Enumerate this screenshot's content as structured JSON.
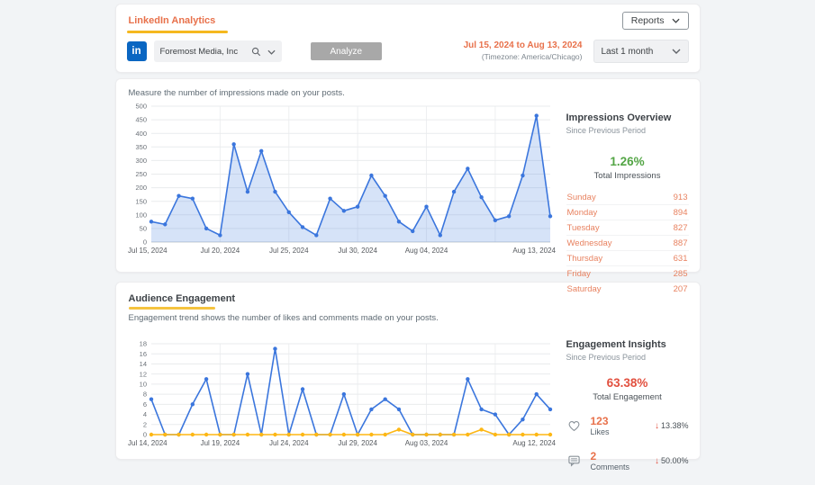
{
  "header": {
    "tab_label": "LinkedIn Analytics",
    "reports_button": "Reports",
    "linkedin_icon_text": "in",
    "company_name": "Foremost Media, Inc",
    "analyze_button": "Analyze",
    "date_range": "Jul 15, 2024 to Aug 13, 2024",
    "timezone": "(Timezone: America/Chicago)",
    "period_selected": "Last 1 month"
  },
  "impressions": {
    "description": "Measure the number of impressions made on your posts.",
    "overview": {
      "title": "Impressions Overview",
      "subtitle": "Since Previous Period",
      "change_pct": "1.26%",
      "change_color": "#53a545",
      "change_label": "Total Impressions",
      "days": [
        {
          "label": "Sunday",
          "value": "913"
        },
        {
          "label": "Monday",
          "value": "894"
        },
        {
          "label": "Tuesday",
          "value": "827"
        },
        {
          "label": "Wednesday",
          "value": "887"
        },
        {
          "label": "Thursday",
          "value": "631"
        },
        {
          "label": "Friday",
          "value": "285"
        },
        {
          "label": "Saturday",
          "value": "207"
        }
      ]
    }
  },
  "engagement": {
    "title": "Audience Engagement",
    "description": "Engagement trend shows the number of likes and comments made on your posts.",
    "insights": {
      "title": "Engagement Insights",
      "subtitle": "Since Previous Period",
      "change_pct": "63.38%",
      "change_color": "#e2503f",
      "change_label": "Total Engagement",
      "metrics": [
        {
          "icon": "heart-icon",
          "value": "123",
          "label": "Likes",
          "delta": "13.38%",
          "direction": "down"
        },
        {
          "icon": "comment-icon",
          "value": "2",
          "label": "Comments",
          "delta": "50.00%",
          "direction": "down"
        }
      ]
    }
  },
  "chart_data": [
    {
      "type": "area",
      "title": "Impressions per day",
      "x": [
        "Jul 15, 2024",
        "Jul 16, 2024",
        "Jul 17, 2024",
        "Jul 18, 2024",
        "Jul 19, 2024",
        "Jul 20, 2024",
        "Jul 21, 2024",
        "Jul 22, 2024",
        "Jul 23, 2024",
        "Jul 24, 2024",
        "Jul 25, 2024",
        "Jul 26, 2024",
        "Jul 27, 2024",
        "Jul 28, 2024",
        "Jul 29, 2024",
        "Jul 30, 2024",
        "Jul 31, 2024",
        "Aug 01, 2024",
        "Aug 02, 2024",
        "Aug 03, 2024",
        "Aug 04, 2024",
        "Aug 05, 2024",
        "Aug 06, 2024",
        "Aug 07, 2024",
        "Aug 08, 2024",
        "Aug 09, 2024",
        "Aug 10, 2024",
        "Aug 11, 2024",
        "Aug 12, 2024",
        "Aug 13, 2024"
      ],
      "series": [
        {
          "name": "Impressions",
          "color": "#3b76dd",
          "fill": "rgba(67,126,222,0.22)",
          "values": [
            75,
            65,
            170,
            160,
            50,
            25,
            360,
            185,
            335,
            185,
            110,
            55,
            25,
            160,
            115,
            130,
            245,
            170,
            75,
            40,
            130,
            25,
            185,
            270,
            165,
            80,
            95,
            245,
            465,
            95
          ]
        }
      ],
      "ylim": [
        0,
        500
      ],
      "ytick_step": 50,
      "x_tick_labels": [
        "Jul 15, 2024",
        "Jul 20, 2024",
        "Jul 25, 2024",
        "Jul 30, 2024",
        "Aug 04, 2024",
        "Aug 13, 2024"
      ],
      "x_tick_indices": [
        0,
        5,
        10,
        15,
        20,
        29
      ],
      "x_grid_indices": [
        5,
        10,
        15,
        20,
        25
      ],
      "grid": true,
      "legend": "none"
    },
    {
      "type": "line",
      "title": "Likes and comments per day",
      "x": [
        "Jul 14, 2024",
        "Jul 15, 2024",
        "Jul 16, 2024",
        "Jul 17, 2024",
        "Jul 18, 2024",
        "Jul 19, 2024",
        "Jul 20, 2024",
        "Jul 21, 2024",
        "Jul 22, 2024",
        "Jul 23, 2024",
        "Jul 24, 2024",
        "Jul 25, 2024",
        "Jul 26, 2024",
        "Jul 27, 2024",
        "Jul 28, 2024",
        "Jul 29, 2024",
        "Jul 30, 2024",
        "Jul 31, 2024",
        "Aug 01, 2024",
        "Aug 02, 2024",
        "Aug 03, 2024",
        "Aug 04, 2024",
        "Aug 05, 2024",
        "Aug 06, 2024",
        "Aug 07, 2024",
        "Aug 08, 2024",
        "Aug 09, 2024",
        "Aug 10, 2024",
        "Aug 11, 2024",
        "Aug 12, 2024"
      ],
      "series": [
        {
          "name": "Likes",
          "color": "#3b76dd",
          "values": [
            7,
            0,
            0,
            6,
            11,
            0,
            0,
            12,
            0,
            17,
            0,
            9,
            0,
            0,
            8,
            0,
            5,
            7,
            5,
            0,
            0,
            0,
            0,
            11,
            5,
            4,
            0,
            3,
            8,
            5
          ]
        },
        {
          "name": "Comments",
          "color": "#fdb714",
          "values": [
            0,
            0,
            0,
            0,
            0,
            0,
            0,
            0,
            0,
            0,
            0,
            0,
            0,
            0,
            0,
            0,
            0,
            0,
            1,
            0,
            0,
            0,
            0,
            0,
            1,
            0,
            0,
            0,
            0,
            0
          ]
        }
      ],
      "ylim": [
        0,
        18
      ],
      "ytick_step": 2,
      "x_tick_labels": [
        "Jul 14, 2024",
        "Jul 19, 2024",
        "Jul 24, 2024",
        "Jul 29, 2024",
        "Aug 03, 2024",
        "Aug 12, 2024"
      ],
      "x_tick_indices": [
        0,
        5,
        10,
        15,
        20,
        29
      ],
      "x_grid_indices": [
        5,
        10,
        15,
        20,
        25
      ],
      "grid": true,
      "legend": "none"
    }
  ]
}
